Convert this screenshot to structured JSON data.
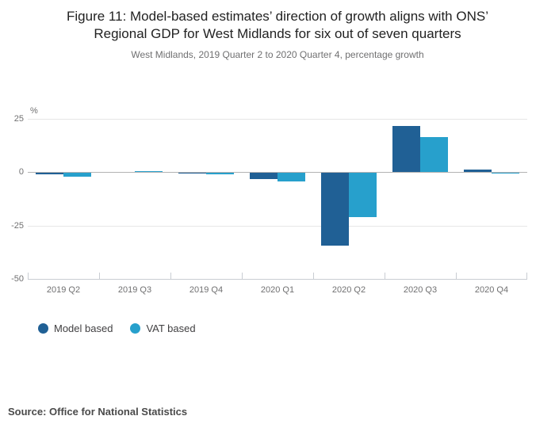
{
  "header": {
    "title": "Figure 11: Model-based estimates’ direction of growth aligns with ONS’ Regional GDP for West Midlands for six out of seven quarters",
    "subtitle": "West Midlands, 2019 Quarter 2 to 2020 Quarter 4, percentage growth"
  },
  "chart_data": {
    "type": "bar",
    "title": "Figure 11: Model-based estimates’ direction of growth aligns with ONS’ Regional GDP for West Midlands for six out of seven quarters",
    "subtitle": "West Midlands, 2019 Quarter 2 to 2020 Quarter 4, percentage growth",
    "unit_label": "%",
    "categories": [
      "2019 Q2",
      "2019 Q3",
      "2019 Q4",
      "2020 Q1",
      "2020 Q2",
      "2020 Q3",
      "2020 Q4"
    ],
    "series": [
      {
        "name": "Model based",
        "color": "#206095",
        "values": [
          -0.8,
          0.0,
          -0.4,
          -3.0,
          -34.0,
          21.5,
          1.1
        ]
      },
      {
        "name": "VAT based",
        "color": "#27A0CC",
        "values": [
          -1.8,
          0.4,
          -0.8,
          -3.8,
          -20.5,
          16.5,
          -0.3
        ]
      }
    ],
    "y_ticks": [
      25,
      0,
      -25,
      -50
    ],
    "ylim": [
      -50,
      25
    ],
    "xlabel": "",
    "ylabel": "%",
    "grid": "horizontal",
    "legend_position": "bottom-left"
  },
  "footer": {
    "source": "Source: Office for National Statistics"
  },
  "colors": {
    "model_based": "#206095",
    "vat_based": "#27A0CC",
    "gridline": "#e6e6e6",
    "zero_line": "#b3b3b3",
    "axis_line": "#c9cdd3",
    "text_muted": "#707071",
    "text_dark": "#222222"
  }
}
